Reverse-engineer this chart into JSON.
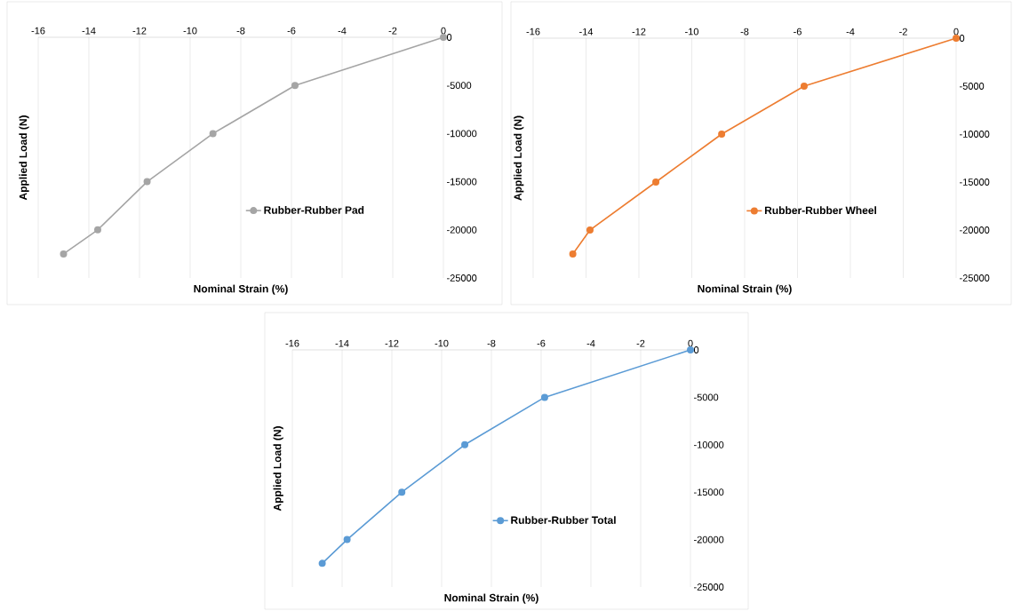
{
  "chart_data": [
    {
      "type": "line",
      "xlabel": "Nominal Strain (%)",
      "ylabel": "Applied Load (N)",
      "x": [
        -15.0,
        -13.65,
        -11.7,
        -9.1,
        -5.86,
        0
      ],
      "series": [
        {
          "name": "Rubber-Rubber Pad",
          "color": "#a5a5a5",
          "values": [
            -22500,
            -20000,
            -15000,
            -10000,
            -5000,
            0
          ]
        }
      ],
      "xlim": [
        -16,
        0
      ],
      "ylim": [
        -25000,
        0
      ],
      "xticks": [
        -16,
        -14,
        -12,
        -10,
        -8,
        -6,
        -4,
        -2,
        0
      ],
      "yticks": [
        0,
        -5000,
        -10000,
        -15000,
        -20000,
        -25000
      ],
      "grid": "x",
      "legend": "right",
      "marker": "circle"
    },
    {
      "type": "line",
      "xlabel": "Nominal Strain (%)",
      "ylabel": "Applied Load (N)",
      "x": [
        -14.5,
        -13.85,
        -11.36,
        -8.87,
        -5.75,
        0
      ],
      "series": [
        {
          "name": "Rubber-Rubber Wheel",
          "color": "#ed7d31",
          "values": [
            -22500,
            -20000,
            -15000,
            -10000,
            -5000,
            0
          ]
        }
      ],
      "xlim": [
        -16,
        0
      ],
      "ylim": [
        -25000,
        0
      ],
      "xticks": [
        -16,
        -14,
        -12,
        -10,
        -8,
        -6,
        -4,
        -2,
        0
      ],
      "yticks": [
        0,
        -5000,
        -10000,
        -15000,
        -20000,
        -25000
      ],
      "grid": "x",
      "legend": "right",
      "marker": "circle"
    },
    {
      "type": "line",
      "xlabel": "Nominal Strain (%)",
      "ylabel": "Applied Load (N)",
      "x": [
        -14.8,
        -13.8,
        -11.6,
        -9.07,
        -5.86,
        0
      ],
      "series": [
        {
          "name": "Rubber-Rubber Total",
          "color": "#5b9bd5",
          "values": [
            -22500,
            -20000,
            -15000,
            -10000,
            -5000,
            0
          ]
        }
      ],
      "xlim": [
        -16,
        0
      ],
      "ylim": [
        -25000,
        0
      ],
      "xticks": [
        -16,
        -14,
        -12,
        -10,
        -8,
        -6,
        -4,
        -2,
        0
      ],
      "yticks": [
        0,
        -5000,
        -10000,
        -15000,
        -20000,
        -25000
      ],
      "grid": "x",
      "legend": "right",
      "marker": "circle"
    }
  ]
}
